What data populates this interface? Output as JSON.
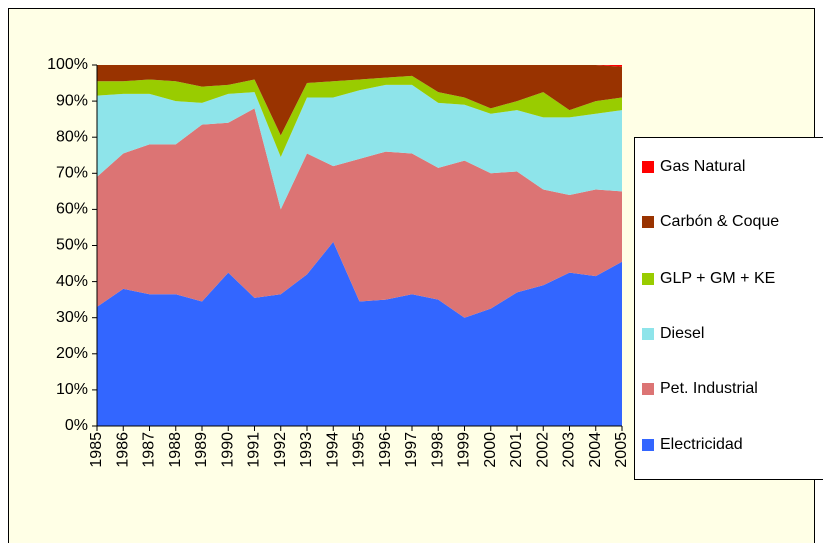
{
  "chart_data": {
    "type": "stacked_area_percent",
    "categories": [
      "1985",
      "1986",
      "1987",
      "1988",
      "1989",
      "1990",
      "1991",
      "1992",
      "1993",
      "1994",
      "1995",
      "1996",
      "1997",
      "1998",
      "1999",
      "2000",
      "2001",
      "2002",
      "2003",
      "2004",
      "2005"
    ],
    "series": [
      {
        "name": "Electricidad",
        "color": "#3366ff",
        "values": [
          33,
          38,
          36.5,
          36.5,
          34.5,
          42.5,
          35.5,
          36.5,
          42,
          51,
          34.5,
          35,
          36.5,
          35,
          30,
          32.5,
          37,
          39,
          42.5,
          41.5,
          45.5
        ]
      },
      {
        "name": "Pet. Industrial",
        "color": "#dc7474",
        "values": [
          36,
          37.5,
          41.5,
          41.5,
          49,
          41.5,
          52.5,
          23.5,
          33.5,
          21,
          39.5,
          41,
          39,
          36.5,
          43.5,
          37.5,
          33.5,
          26.5,
          21.5,
          24,
          19.5
        ]
      },
      {
        "name": "Diesel",
        "color": "#8ee4ea",
        "values": [
          22.5,
          16.5,
          14,
          12,
          6,
          8,
          4.5,
          14.5,
          15.5,
          19,
          19,
          18.5,
          19,
          18,
          15.5,
          16.5,
          17,
          20,
          21.5,
          21,
          22.5
        ]
      },
      {
        "name": "GLP + GM + KE",
        "color": "#99cc00",
        "values": [
          4,
          3.5,
          4,
          5.5,
          4.5,
          2.5,
          3.5,
          6,
          4,
          4.5,
          3,
          2,
          2.5,
          3,
          2,
          1.5,
          2.5,
          7,
          2,
          3.5,
          3.5
        ]
      },
      {
        "name": "Carbón & Coque",
        "color": "#993300",
        "values": [
          4.5,
          4.5,
          4,
          4.5,
          6,
          5.5,
          4,
          19.5,
          5,
          4.5,
          4,
          3.5,
          3,
          7.5,
          9,
          12,
          10,
          7.5,
          12.5,
          10,
          8.5
        ]
      },
      {
        "name": "Gas Natural",
        "color": "#ff0000",
        "values": [
          0,
          0,
          0,
          0,
          0,
          0,
          0,
          0,
          0,
          0,
          0,
          0,
          0,
          0,
          0,
          0,
          0,
          0,
          0,
          0,
          0.5
        ]
      }
    ],
    "ylim": [
      0,
      100
    ],
    "yticks": [
      {
        "value": 0,
        "label": "0%"
      },
      {
        "value": 10,
        "label": "10%"
      },
      {
        "value": 20,
        "label": "20%"
      },
      {
        "value": 30,
        "label": "30%"
      },
      {
        "value": 40,
        "label": "40%"
      },
      {
        "value": 50,
        "label": "50%"
      },
      {
        "value": 60,
        "label": "60%"
      },
      {
        "value": 70,
        "label": "70%"
      },
      {
        "value": 80,
        "label": "80%"
      },
      {
        "value": 90,
        "label": "90%"
      },
      {
        "value": 100,
        "label": "100%"
      }
    ]
  }
}
